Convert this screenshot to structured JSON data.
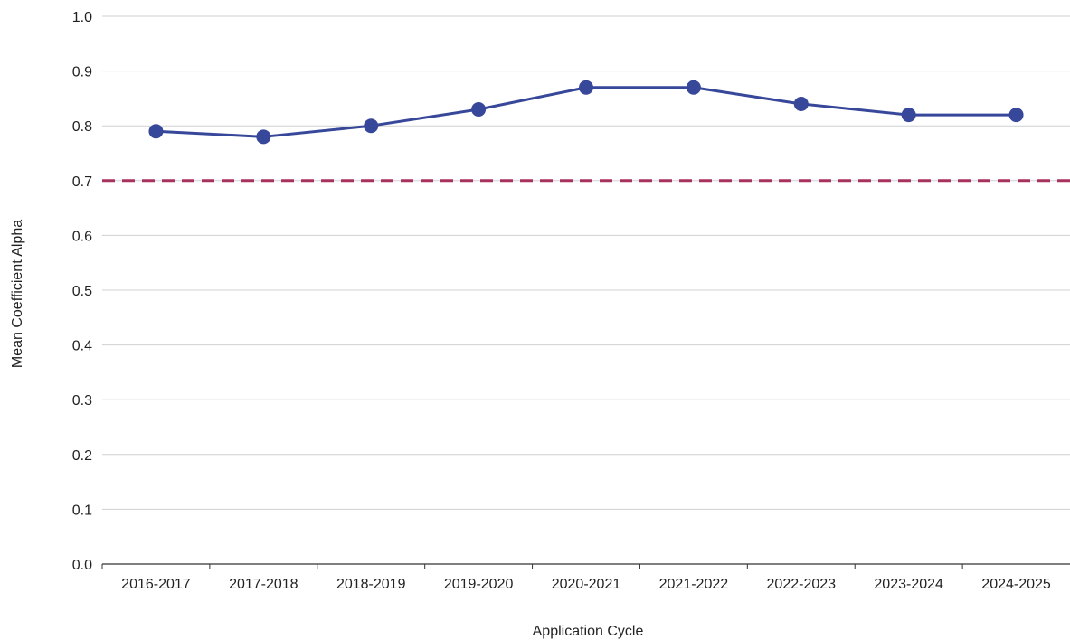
{
  "chart_data": {
    "type": "line",
    "title": "",
    "xlabel": "Application Cycle",
    "ylabel": "Mean Coefficient Alpha",
    "categories": [
      "2016-2017",
      "2017-2018",
      "2018-2019",
      "2019-2020",
      "2020-2021",
      "2021-2022",
      "2022-2023",
      "2023-2024",
      "2024-2025"
    ],
    "series": [
      {
        "values": [
          0.79,
          0.78,
          0.8,
          0.83,
          0.87,
          0.87,
          0.84,
          0.82,
          0.82
        ],
        "color": "#37479a"
      }
    ],
    "reference_line": {
      "value": 0.7,
      "style": "dashed",
      "color": "#a8325e"
    },
    "ylim": [
      0.0,
      1.0
    ],
    "yticks": [
      "0.0",
      "0.1",
      "0.2",
      "0.3",
      "0.4",
      "0.5",
      "0.6",
      "0.7",
      "0.8",
      "0.9",
      "1.0"
    ],
    "grid": true,
    "legend": "none"
  },
  "colors": {
    "grid": "#d0d0d0",
    "axis": "#333333"
  }
}
